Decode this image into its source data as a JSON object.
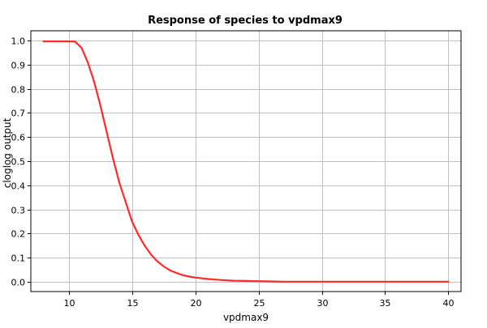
{
  "chart_data": {
    "type": "line",
    "title": "Response of species to vpdmax9",
    "xlabel": "vpdmax9",
    "ylabel": "cloglog output",
    "xlim": [
      7,
      41
    ],
    "ylim": [
      -0.04,
      1.04
    ],
    "x_ticks": [
      10,
      15,
      20,
      25,
      30,
      35,
      40
    ],
    "x_tick_labels": [
      "10",
      "15",
      "20",
      "25",
      "30",
      "35",
      "40"
    ],
    "y_ticks": [
      0.0,
      0.1,
      0.2,
      0.3,
      0.4,
      0.5,
      0.6,
      0.7,
      0.8,
      0.9,
      1.0
    ],
    "y_tick_labels": [
      "0.0",
      "0.1",
      "0.2",
      "0.3",
      "0.4",
      "0.5",
      "0.6",
      "0.7",
      "0.8",
      "0.9",
      "1.0"
    ],
    "grid": true,
    "series": [
      {
        "color": "#ff2a2a",
        "x": [
          8,
          9,
          10,
          10.5,
          11,
          11.5,
          12,
          12.5,
          13,
          13.5,
          14,
          14.5,
          15,
          15.5,
          16,
          16.5,
          17,
          17.5,
          18,
          18.5,
          19,
          19.5,
          20,
          21,
          22,
          23,
          24,
          25,
          26,
          27,
          30,
          35,
          40
        ],
        "y": [
          0.996,
          0.996,
          0.996,
          0.995,
          0.97,
          0.91,
          0.83,
          0.73,
          0.62,
          0.51,
          0.41,
          0.33,
          0.25,
          0.195,
          0.15,
          0.113,
          0.085,
          0.064,
          0.048,
          0.037,
          0.028,
          0.022,
          0.018,
          0.012,
          0.008,
          0.005,
          0.004,
          0.003,
          0.002,
          0.001,
          0.001,
          0.001,
          0.001
        ]
      }
    ]
  }
}
